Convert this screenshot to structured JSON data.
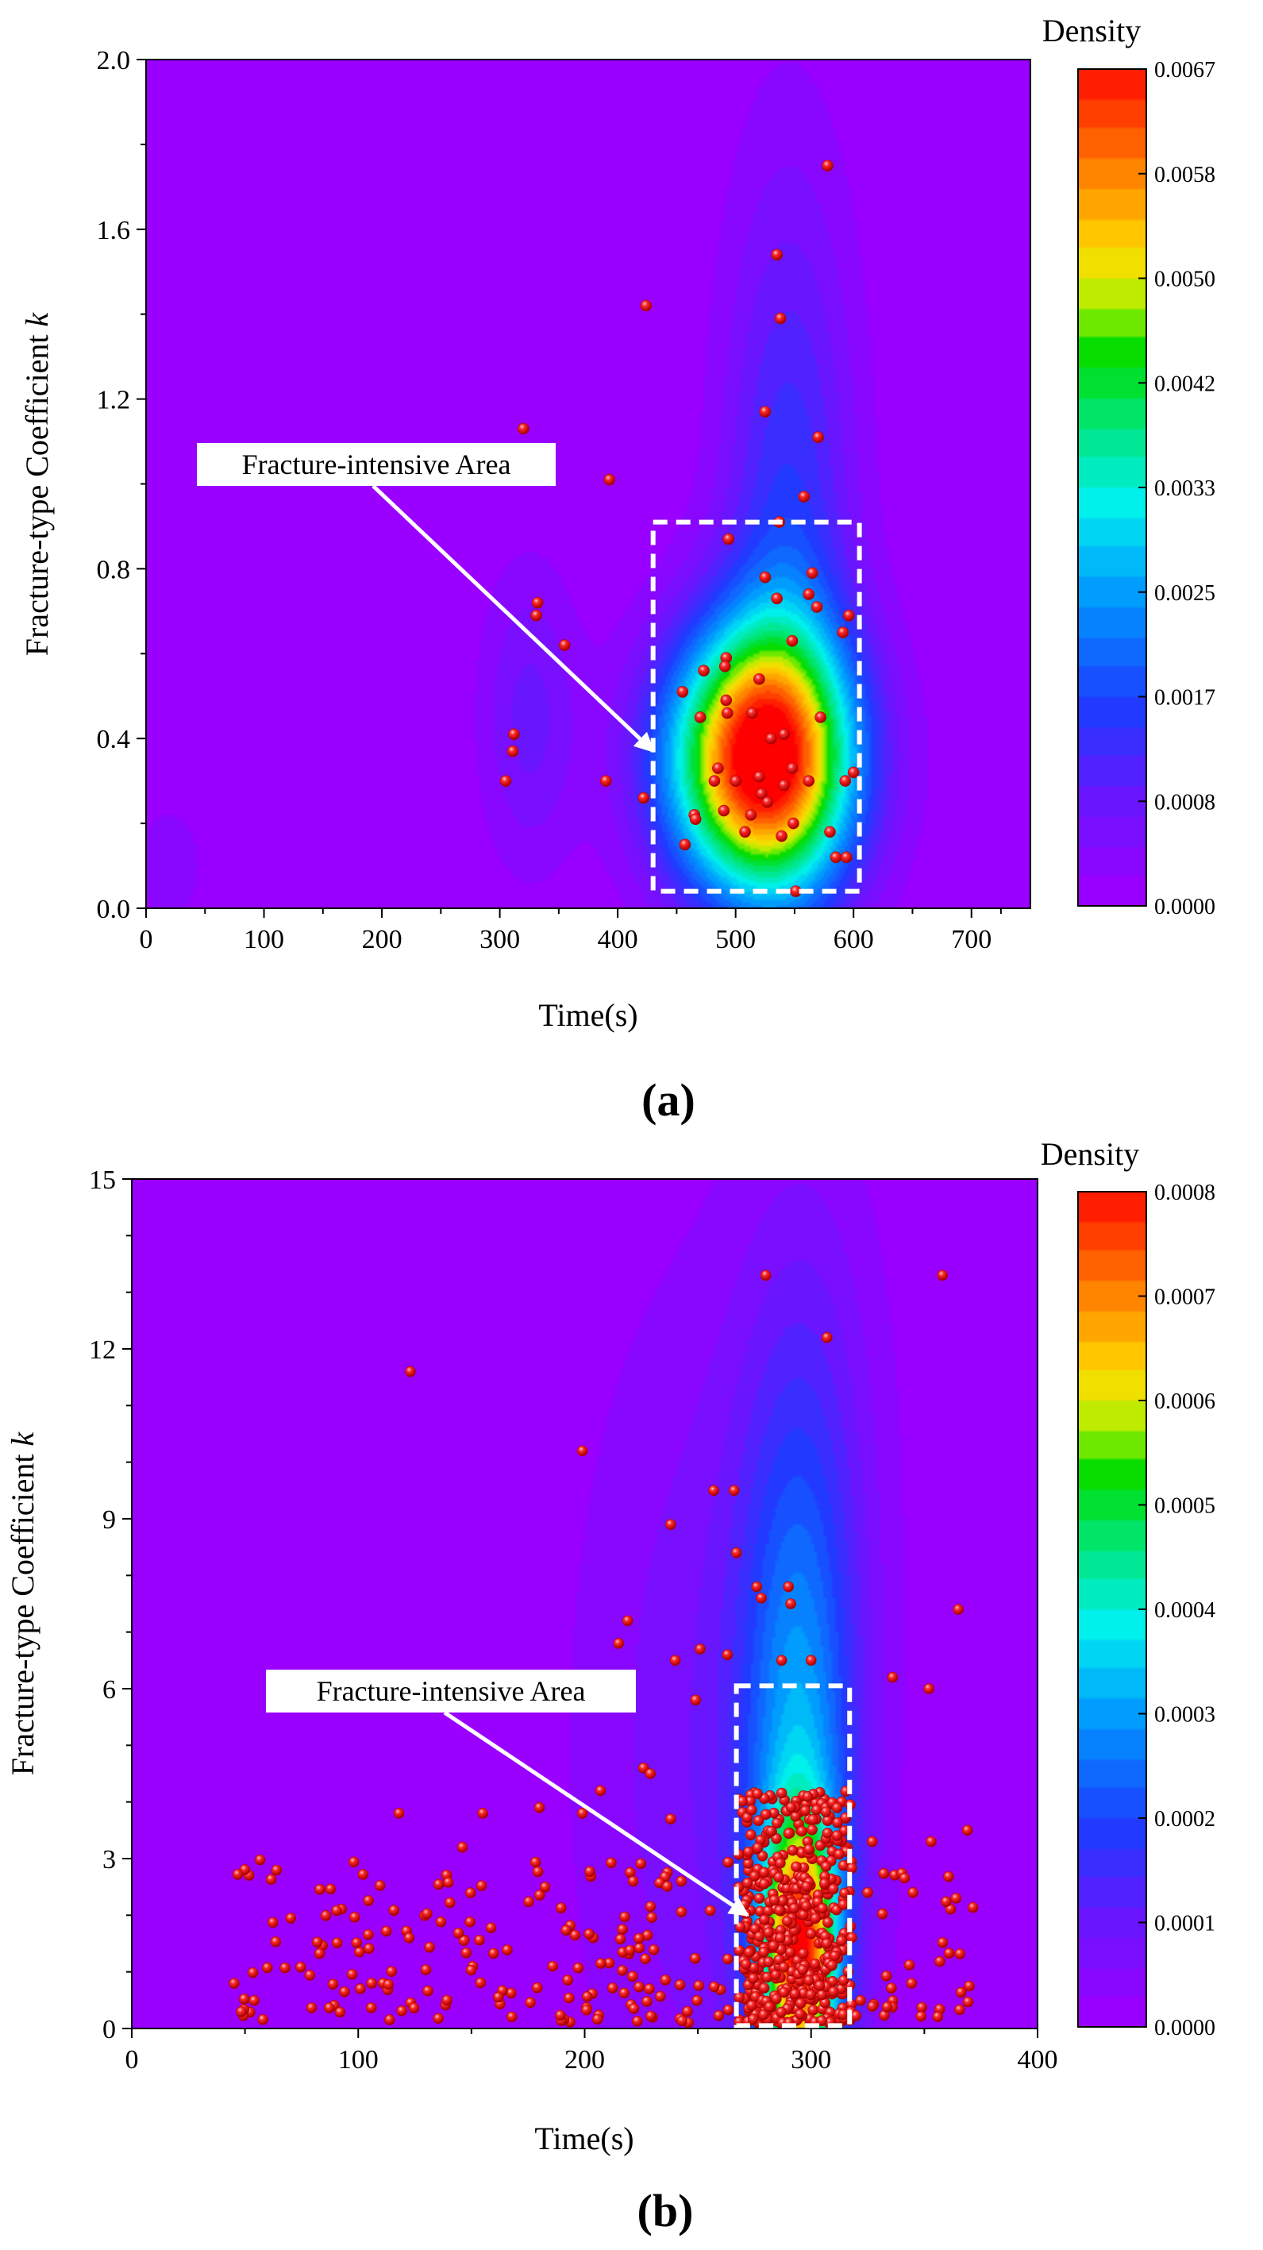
{
  "figure": {
    "panel_labels": [
      "(a)",
      "(b)"
    ]
  },
  "colors": {
    "background": "#9900ff",
    "marker": "#ff1a1a",
    "annotation": "#ffffff"
  },
  "chart_data": [
    {
      "type": "contour-scatter",
      "panel": "(a)",
      "xlabel": "Time(s)",
      "ylabel_prefix": "Fracture-type Coefficient ",
      "ylabel_italic": "k",
      "xlim": [
        0,
        750
      ],
      "ylim": [
        0,
        2.0
      ],
      "xticks": [
        0,
        100,
        200,
        300,
        400,
        500,
        600,
        700
      ],
      "yticks": [
        0.0,
        0.4,
        0.8,
        1.2,
        1.6,
        2.0
      ],
      "ytick_labels": [
        "0.0",
        "0.4",
        "0.8",
        "1.2",
        "1.6",
        "2.0"
      ],
      "colorbar": {
        "title": "Density",
        "ticks": [
          "0.0000",
          "0.0008",
          "0.0017",
          "0.0025",
          "0.0033",
          "0.0042",
          "0.0050",
          "0.0058",
          "0.0067"
        ],
        "min": 0,
        "max": 0.0067
      },
      "annotation": {
        "label": "Fracture-intensive Area",
        "box": {
          "x0": 430,
          "x1": 605,
          "y0": 0.04,
          "y1": 0.91
        },
        "arrow_to": {
          "x": 430,
          "y": 0.37
        }
      },
      "density_peaks": [
        {
          "x": 520,
          "y": 0.35,
          "sx": 55,
          "sy": 0.22,
          "w": 1.0
        },
        {
          "x": 545,
          "y": 0.85,
          "sx": 40,
          "sy": 0.6,
          "w": 0.22
        },
        {
          "x": 325,
          "y": 0.45,
          "sx": 30,
          "sy": 0.25,
          "w": 0.12
        },
        {
          "x": 20,
          "y": 0.1,
          "sx": 50,
          "sy": 0.25,
          "w": 0.04
        }
      ],
      "points": [
        [
          578,
          1.75
        ],
        [
          535,
          1.54
        ],
        [
          538,
          1.39
        ],
        [
          424,
          1.42
        ],
        [
          525,
          1.17
        ],
        [
          570,
          1.11
        ],
        [
          320,
          1.13
        ],
        [
          393,
          1.01
        ],
        [
          558,
          0.97
        ],
        [
          537,
          0.91
        ],
        [
          494,
          0.87
        ],
        [
          565,
          0.79
        ],
        [
          525,
          0.78
        ],
        [
          535,
          0.73
        ],
        [
          562,
          0.74
        ],
        [
          569,
          0.71
        ],
        [
          596,
          0.69
        ],
        [
          332,
          0.72
        ],
        [
          331,
          0.69
        ],
        [
          355,
          0.62
        ],
        [
          591,
          0.65
        ],
        [
          548,
          0.63
        ],
        [
          492,
          0.59
        ],
        [
          491,
          0.57
        ],
        [
          473,
          0.56
        ],
        [
          520,
          0.54
        ],
        [
          455,
          0.51
        ],
        [
          492,
          0.49
        ],
        [
          514,
          0.46
        ],
        [
          470,
          0.45
        ],
        [
          493,
          0.46
        ],
        [
          572,
          0.45
        ],
        [
          541,
          0.41
        ],
        [
          530,
          0.4
        ],
        [
          312,
          0.41
        ],
        [
          311,
          0.37
        ],
        [
          485,
          0.33
        ],
        [
          548,
          0.33
        ],
        [
          541,
          0.29
        ],
        [
          500,
          0.3
        ],
        [
          520,
          0.31
        ],
        [
          482,
          0.3
        ],
        [
          593,
          0.3
        ],
        [
          600,
          0.32
        ],
        [
          562,
          0.3
        ],
        [
          305,
          0.3
        ],
        [
          390,
          0.3
        ],
        [
          422,
          0.26
        ],
        [
          522,
          0.27
        ],
        [
          527,
          0.25
        ],
        [
          513,
          0.22
        ],
        [
          465,
          0.22
        ],
        [
          490,
          0.23
        ],
        [
          508,
          0.18
        ],
        [
          549,
          0.2
        ],
        [
          580,
          0.18
        ],
        [
          466,
          0.21
        ],
        [
          457,
          0.15
        ],
        [
          539,
          0.17
        ],
        [
          585,
          0.12
        ],
        [
          594,
          0.12
        ],
        [
          551,
          0.04
        ]
      ]
    },
    {
      "type": "contour-scatter",
      "panel": "(b)",
      "xlabel": "Time(s)",
      "ylabel_prefix": "Fracture-type Coefficient ",
      "ylabel_italic": "k",
      "xlim": [
        0,
        400
      ],
      "ylim": [
        0,
        15
      ],
      "xticks": [
        0,
        100,
        200,
        300,
        400
      ],
      "yticks": [
        0,
        3,
        6,
        9,
        12,
        15
      ],
      "ytick_labels": [
        "0",
        "3",
        "6",
        "9",
        "12",
        "15"
      ],
      "colorbar": {
        "title": "Density",
        "ticks": [
          "0.0000",
          "0.0001",
          "0.0002",
          "0.0003",
          "0.0004",
          "0.0005",
          "0.0006",
          "0.0007",
          "0.0008"
        ],
        "min": 0,
        "max": 0.0008
      },
      "annotation": {
        "label": "Fracture-intensive Area",
        "box": {
          "x0": 267,
          "x1": 317,
          "y0": 0.05,
          "y1": 6.05
        },
        "arrow_to": {
          "x": 272,
          "y": 2.0
        }
      },
      "density_peaks": [
        {
          "x": 295,
          "y": 1.3,
          "sx": 11,
          "sy": 1.6,
          "w": 0.72
        },
        {
          "x": 295,
          "y": 4.0,
          "sx": 18,
          "sy": 4.5,
          "w": 0.32
        },
        {
          "x": 258,
          "y": 5.0,
          "sx": 45,
          "sy": 6.0,
          "w": 0.1
        },
        {
          "x": 300,
          "y": 11.0,
          "sx": 25,
          "sy": 4.0,
          "w": 0.06
        }
      ],
      "outlier_points": [
        [
          123,
          11.6
        ],
        [
          199,
          10.2
        ],
        [
          280,
          13.3
        ],
        [
          307,
          12.2
        ],
        [
          358,
          13.3
        ],
        [
          238,
          8.9
        ],
        [
          257,
          9.5
        ],
        [
          266,
          9.5
        ],
        [
          267,
          8.4
        ],
        [
          276,
          7.8
        ],
        [
          278,
          7.6
        ],
        [
          290,
          7.8
        ],
        [
          291,
          7.5
        ],
        [
          365,
          7.4
        ],
        [
          215,
          6.8
        ],
        [
          219,
          7.2
        ],
        [
          263,
          6.6
        ],
        [
          240,
          6.5
        ],
        [
          251,
          6.7
        ],
        [
          287,
          6.5
        ],
        [
          300,
          6.5
        ],
        [
          336,
          6.2
        ],
        [
          352,
          6.0
        ],
        [
          249,
          5.8
        ],
        [
          226,
          4.6
        ],
        [
          229,
          4.5
        ],
        [
          207,
          4.2
        ],
        [
          238,
          3.7
        ],
        [
          180,
          3.9
        ],
        [
          118,
          3.8
        ],
        [
          155,
          3.8
        ],
        [
          199,
          3.8
        ],
        [
          146,
          3.2
        ],
        [
          369,
          3.5
        ],
        [
          353,
          3.3
        ],
        [
          327,
          3.3
        ],
        [
          325,
          2.4
        ],
        [
          345,
          2.4
        ],
        [
          364,
          2.3
        ]
      ],
      "scatter": {
        "seed": 7,
        "dense_count": 430,
        "dense_x": [
          268,
          318
        ],
        "dense_y": [
          0.1,
          4.2
        ],
        "sparse_count": 260,
        "sparse_x": [
          45,
          372
        ],
        "sparse_y": [
          0.1,
          3.0
        ]
      }
    }
  ]
}
